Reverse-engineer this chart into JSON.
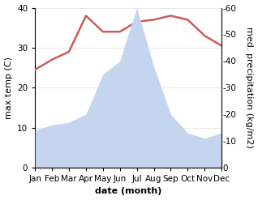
{
  "months": [
    "Jan",
    "Feb",
    "Mar",
    "Apr",
    "May",
    "Jun",
    "Jul",
    "Aug",
    "Sep",
    "Oct",
    "Nov",
    "Dec"
  ],
  "temperature": [
    24.5,
    27,
    29,
    38,
    34,
    34,
    36.5,
    37,
    38,
    37,
    33,
    30.5
  ],
  "precipitation": [
    14,
    16,
    17,
    20,
    35,
    40,
    60,
    38,
    20,
    13,
    11,
    13
  ],
  "temp_color": "#cd5c5c",
  "precip_color": "#c5d5f0",
  "background_color": "#ffffff",
  "xlabel": "date (month)",
  "ylabel_left": "max temp (C)",
  "ylabel_right": "med. precipitation (kg/m2)",
  "ylim_left": [
    0,
    40
  ],
  "ylim_right": [
    0,
    60
  ],
  "temp_linewidth": 1.8,
  "xlabel_fontsize": 8,
  "ylabel_fontsize": 8,
  "tick_fontsize": 7.5,
  "xlabel_fontweight": "bold"
}
